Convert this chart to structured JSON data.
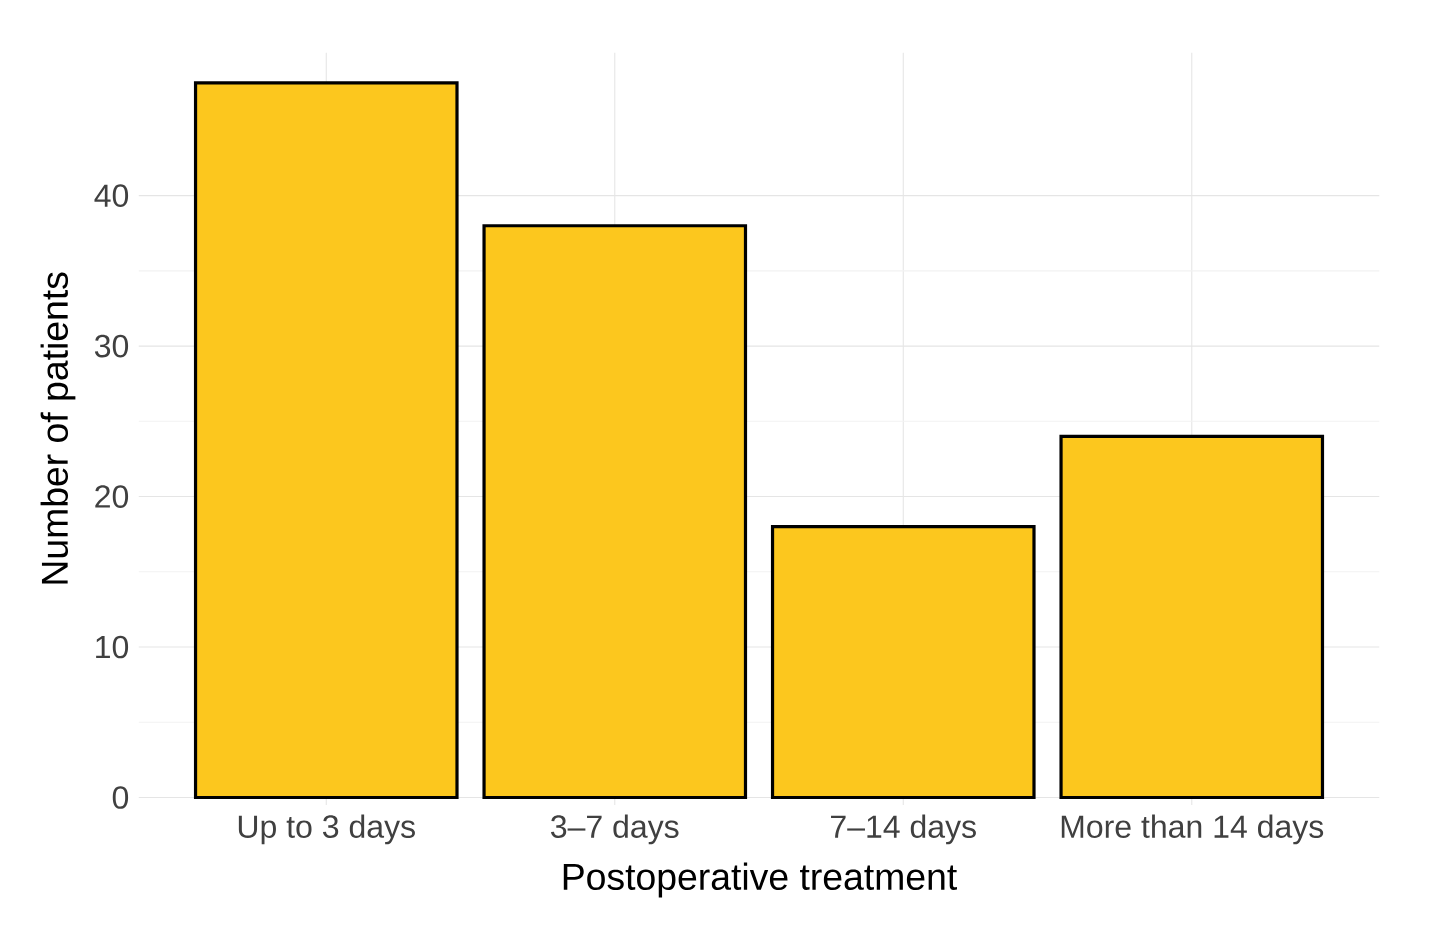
{
  "chart_data": {
    "type": "bar",
    "xlabel": "Postoperative treatment",
    "ylabel": "Number of patients",
    "categories": [
      "Up to 3 days",
      "3–7 days",
      "7–14 days",
      "More than 14 days"
    ],
    "values": [
      47.5,
      38,
      18,
      24
    ],
    "color": "#fcc71e",
    "ylim": [
      -0.5,
      49.5
    ],
    "yticks": [
      0,
      10,
      20,
      30,
      40
    ],
    "grid": true
  }
}
